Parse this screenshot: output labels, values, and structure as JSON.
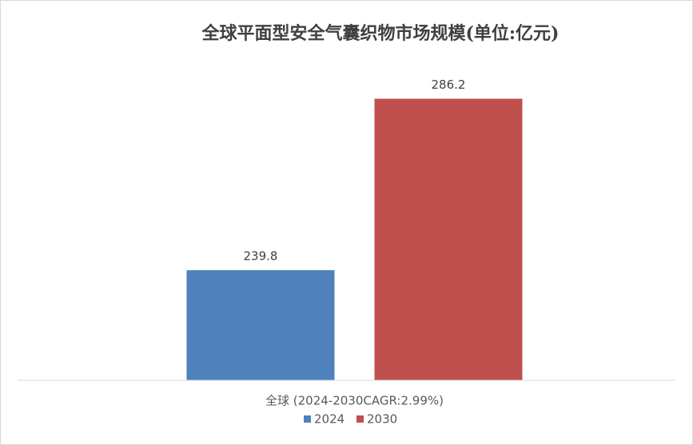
{
  "chart_data": {
    "type": "bar",
    "title": "全球平面型安全气囊织物市场规模(单位:亿元)",
    "categories": [
      "全球 (2024-2030CAGR:2.99%)"
    ],
    "series": [
      {
        "name": "2024",
        "color": "#4f81bd",
        "values": [
          239.8
        ]
      },
      {
        "name": "2030",
        "color": "#c0504d",
        "values": [
          286.2
        ]
      }
    ],
    "ylim": [
      210,
      290
    ],
    "legend": "bottom"
  }
}
